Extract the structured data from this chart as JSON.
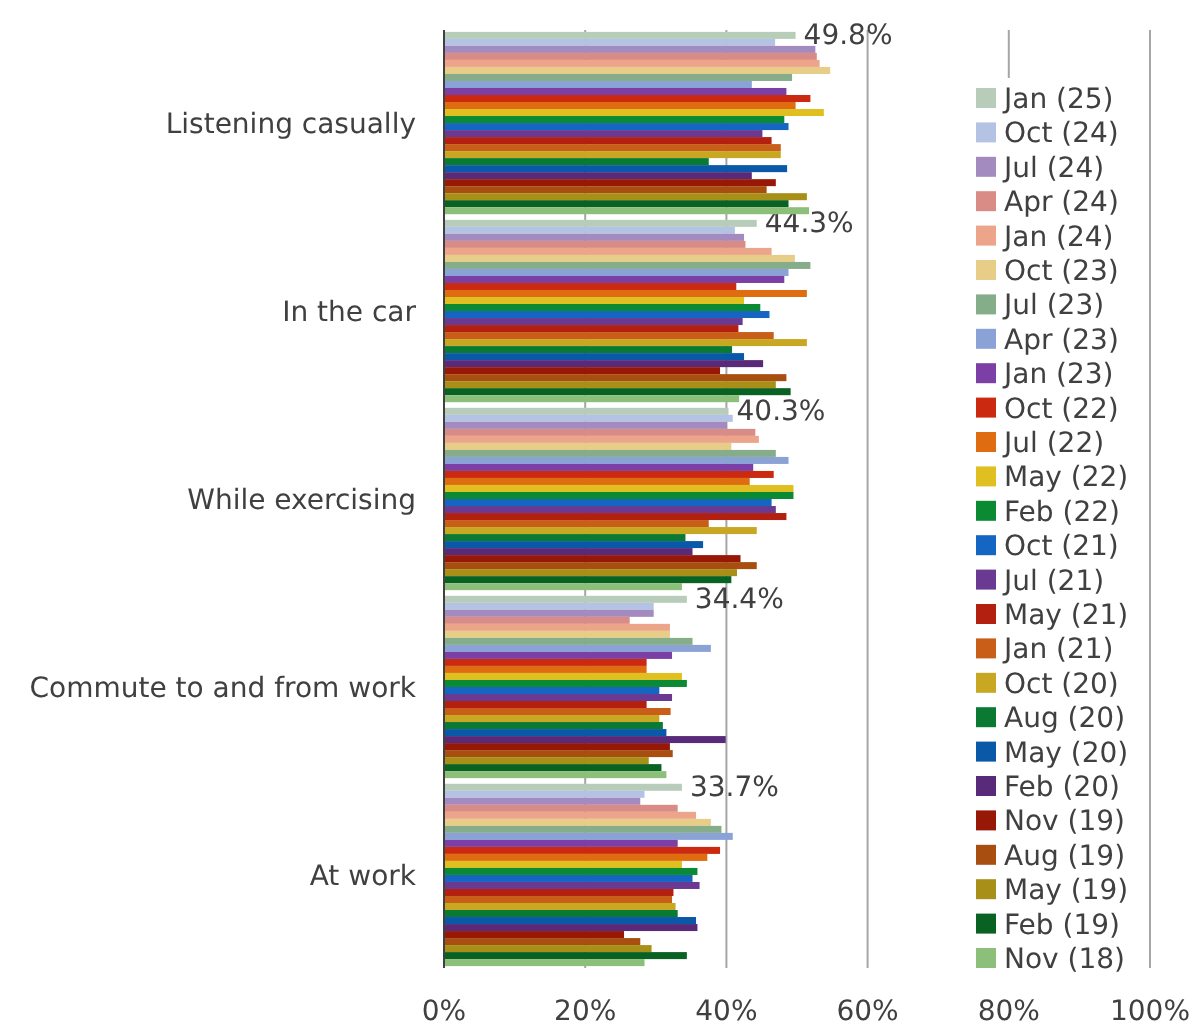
{
  "chart_data": {
    "type": "bar",
    "orientation": "horizontal",
    "categories": [
      "Listening casually",
      "In the car",
      "While exercising",
      "Commute to and from work",
      "At work"
    ],
    "xlim": [
      0,
      100
    ],
    "xticks": [
      {
        "value": 0,
        "label": "0%"
      },
      {
        "value": 20,
        "label": "20%"
      },
      {
        "value": 40,
        "label": "40%"
      },
      {
        "value": 60,
        "label": "60%"
      },
      {
        "value": 80,
        "label": "80%"
      },
      {
        "value": 100,
        "label": "100%"
      }
    ],
    "grid": "x",
    "legend": "right",
    "series": [
      {
        "name": "Jan (25)",
        "color": "#b7cdb9",
        "values": [
          49.8,
          44.3,
          40.3,
          34.4,
          33.7
        ],
        "value_labels": [
          "49.8%",
          "44.3%",
          "40.3%",
          "34.4%",
          "33.7%"
        ]
      },
      {
        "name": "Oct (24)",
        "color": "#b4c2e4",
        "values": [
          46.9,
          41.2,
          40.9,
          29.7,
          28.4
        ]
      },
      {
        "name": "Jul (24)",
        "color": "#a48bbf",
        "values": [
          52.6,
          42.5,
          40.1,
          29.7,
          27.8
        ]
      },
      {
        "name": "Apr (24)",
        "color": "#d98b85",
        "values": [
          52.8,
          42.7,
          44.1,
          26.3,
          33.1
        ]
      },
      {
        "name": "Jan (24)",
        "color": "#eca48a",
        "values": [
          53.2,
          46.4,
          44.6,
          32.0,
          35.7
        ]
      },
      {
        "name": "Oct (23)",
        "color": "#e7cd87",
        "values": [
          54.7,
          49.7,
          40.7,
          32.0,
          37.8
        ]
      },
      {
        "name": "Jul (23)",
        "color": "#86ad8a",
        "values": [
          49.3,
          51.9,
          47.0,
          35.2,
          39.3
        ]
      },
      {
        "name": "Apr (23)",
        "color": "#8aa2d5",
        "values": [
          43.6,
          48.8,
          48.8,
          37.8,
          40.9
        ]
      },
      {
        "name": "Jan (23)",
        "color": "#7b3fa5",
        "values": [
          48.5,
          48.2,
          43.8,
          32.3,
          33.1
        ]
      },
      {
        "name": "Oct (22)",
        "color": "#cc2a10",
        "values": [
          51.9,
          41.4,
          46.7,
          28.7,
          39.1
        ]
      },
      {
        "name": "Jul (22)",
        "color": "#e06c12",
        "values": [
          49.8,
          51.4,
          43.3,
          28.7,
          37.3
        ]
      },
      {
        "name": "May (22)",
        "color": "#e0c020",
        "values": [
          53.8,
          42.5,
          49.5,
          33.7,
          33.7
        ]
      },
      {
        "name": "Feb (22)",
        "color": "#0a8a32",
        "values": [
          48.2,
          44.8,
          49.5,
          34.4,
          35.9
        ]
      },
      {
        "name": "Oct (21)",
        "color": "#1466c2",
        "values": [
          48.8,
          46.1,
          46.4,
          30.5,
          35.2
        ]
      },
      {
        "name": "Jul (21)",
        "color": "#6a3a92",
        "values": [
          45.1,
          42.3,
          47.0,
          32.3,
          36.2
        ]
      },
      {
        "name": "May (21)",
        "color": "#b42010",
        "values": [
          46.4,
          41.7,
          48.5,
          28.7,
          32.5
        ]
      },
      {
        "name": "Jan (21)",
        "color": "#c85e18",
        "values": [
          47.7,
          46.7,
          37.5,
          32.1,
          32.3
        ]
      },
      {
        "name": "Oct (20)",
        "color": "#c8a822",
        "values": [
          47.7,
          51.4,
          44.3,
          30.5,
          32.8
        ]
      },
      {
        "name": "Aug (20)",
        "color": "#0a7a32",
        "values": [
          37.5,
          40.8,
          34.2,
          31.0,
          33.1
        ]
      },
      {
        "name": "May (20)",
        "color": "#0a58a8",
        "values": [
          48.6,
          42.5,
          36.7,
          31.5,
          35.7
        ]
      },
      {
        "name": "Feb (20)",
        "color": "#5a2a7a",
        "values": [
          43.6,
          45.2,
          35.2,
          39.9,
          35.9
        ]
      },
      {
        "name": "Nov (19)",
        "color": "#981808",
        "values": [
          47.0,
          39.1,
          42.0,
          32.0,
          25.5
        ]
      },
      {
        "name": "Aug (19)",
        "color": "#a84e10",
        "values": [
          45.7,
          48.5,
          44.3,
          32.4,
          27.8
        ]
      },
      {
        "name": "May (19)",
        "color": "#a89018",
        "values": [
          51.4,
          47.0,
          41.5,
          29.0,
          29.4
        ]
      },
      {
        "name": "Feb (19)",
        "color": "#0a6222",
        "values": [
          48.8,
          49.1,
          40.7,
          30.8,
          34.4
        ]
      },
      {
        "name": "Nov (18)",
        "color": "#8cc07a",
        "values": [
          51.7,
          41.8,
          33.7,
          31.5,
          28.4
        ]
      }
    ]
  }
}
